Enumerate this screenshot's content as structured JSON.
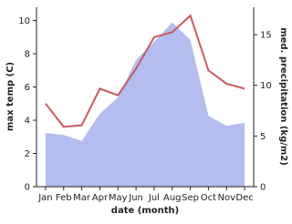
{
  "chart_data": {
    "type": "line-area",
    "categories": [
      "Jan",
      "Feb",
      "Mar",
      "Apr",
      "May",
      "Jun",
      "Jul",
      "Aug",
      "Sep",
      "Oct",
      "Nov",
      "Dec"
    ],
    "x_label": "date (month)",
    "y_label": "max temp (C)",
    "y2_label": "med. precipitation (kg/m2)",
    "ylim": [
      0,
      10.8
    ],
    "yticks": [
      0,
      2,
      4,
      6,
      8,
      10
    ],
    "y2lim": [
      0,
      17.7
    ],
    "y2ticks": [
      0,
      5,
      10,
      15
    ],
    "series": [
      {
        "name": "med. precipitation",
        "color": "#b3bdf0",
        "axis": "y2",
        "kind": "area",
        "values": [
          5.3,
          5.1,
          4.5,
          7.2,
          8.8,
          12.5,
          14.3,
          16.2,
          14.5,
          7.0,
          6.0,
          6.3
        ]
      },
      {
        "name": "max temp",
        "color": "#c85a5f",
        "axis": "y",
        "kind": "line",
        "values": [
          5.0,
          3.6,
          3.7,
          5.9,
          5.5,
          7.1,
          9.0,
          9.3,
          10.3,
          7.0,
          6.2,
          5.9
        ]
      }
    ]
  }
}
